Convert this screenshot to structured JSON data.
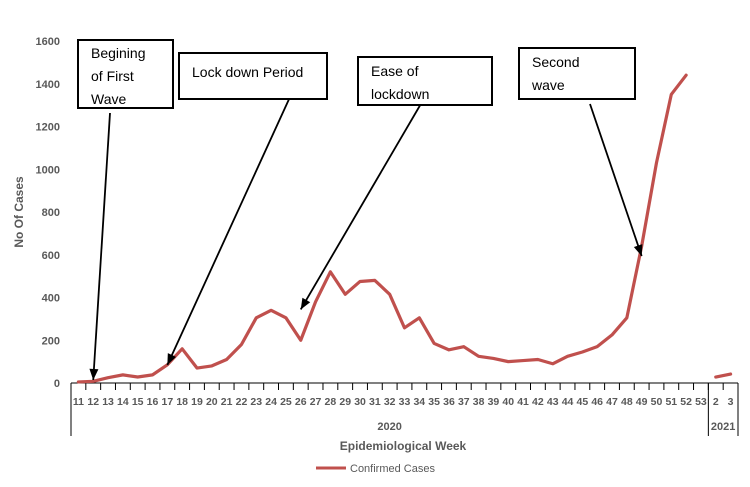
{
  "chart_data": {
    "type": "line",
    "ylabel": "No Of Cases",
    "xlabel": "Epidemiological Week",
    "ylim": [
      0,
      1600
    ],
    "yticks": [
      "0",
      "200",
      "400",
      "600",
      "800",
      "1000",
      "1200",
      "1400",
      "1600"
    ],
    "categories": [
      "11",
      "12",
      "13",
      "14",
      "15",
      "16",
      "17",
      "18",
      "19",
      "20",
      "21",
      "22",
      "23",
      "24",
      "25",
      "26",
      "27",
      "28",
      "29",
      "30",
      "31",
      "32",
      "33",
      "34",
      "35",
      "36",
      "37",
      "38",
      "39",
      "40",
      "41",
      "42",
      "43",
      "44",
      "45",
      "46",
      "47",
      "48",
      "49",
      "50",
      "51",
      "52",
      "53",
      "2",
      "3"
    ],
    "groups": [
      {
        "label": "2020",
        "from": "11",
        "to": "53"
      },
      {
        "label": "2021",
        "from": "2",
        "to": "3"
      }
    ],
    "series": [
      {
        "name": "Confirmed Cases",
        "color": "#c0504d",
        "values": [
          5,
          8,
          25,
          38,
          28,
          38,
          85,
          160,
          70,
          80,
          110,
          180,
          305,
          340,
          305,
          200,
          380,
          520,
          415,
          475,
          480,
          415,
          258,
          305,
          185,
          155,
          170,
          125,
          115,
          100,
          105,
          110,
          90,
          125,
          145,
          170,
          225,
          305,
          640,
          1030,
          1350,
          1440,
          null,
          28,
          42
        ]
      }
    ],
    "legend": {
      "position": "bottom",
      "label": "Confirmed Cases"
    },
    "grid": false,
    "annotations": [
      {
        "text": [
          "Begining",
          "of First",
          "Wave"
        ],
        "target_week": "12",
        "target_value": 0
      },
      {
        "text": [
          "Lock down Period"
        ],
        "target_week": "17",
        "target_value": 70
      },
      {
        "text": [
          "Ease of",
          "lockdown"
        ],
        "target_week": "26",
        "target_value": 330
      },
      {
        "text": [
          "Second",
          "wave"
        ],
        "target_week": "49",
        "target_value": 580
      }
    ]
  }
}
